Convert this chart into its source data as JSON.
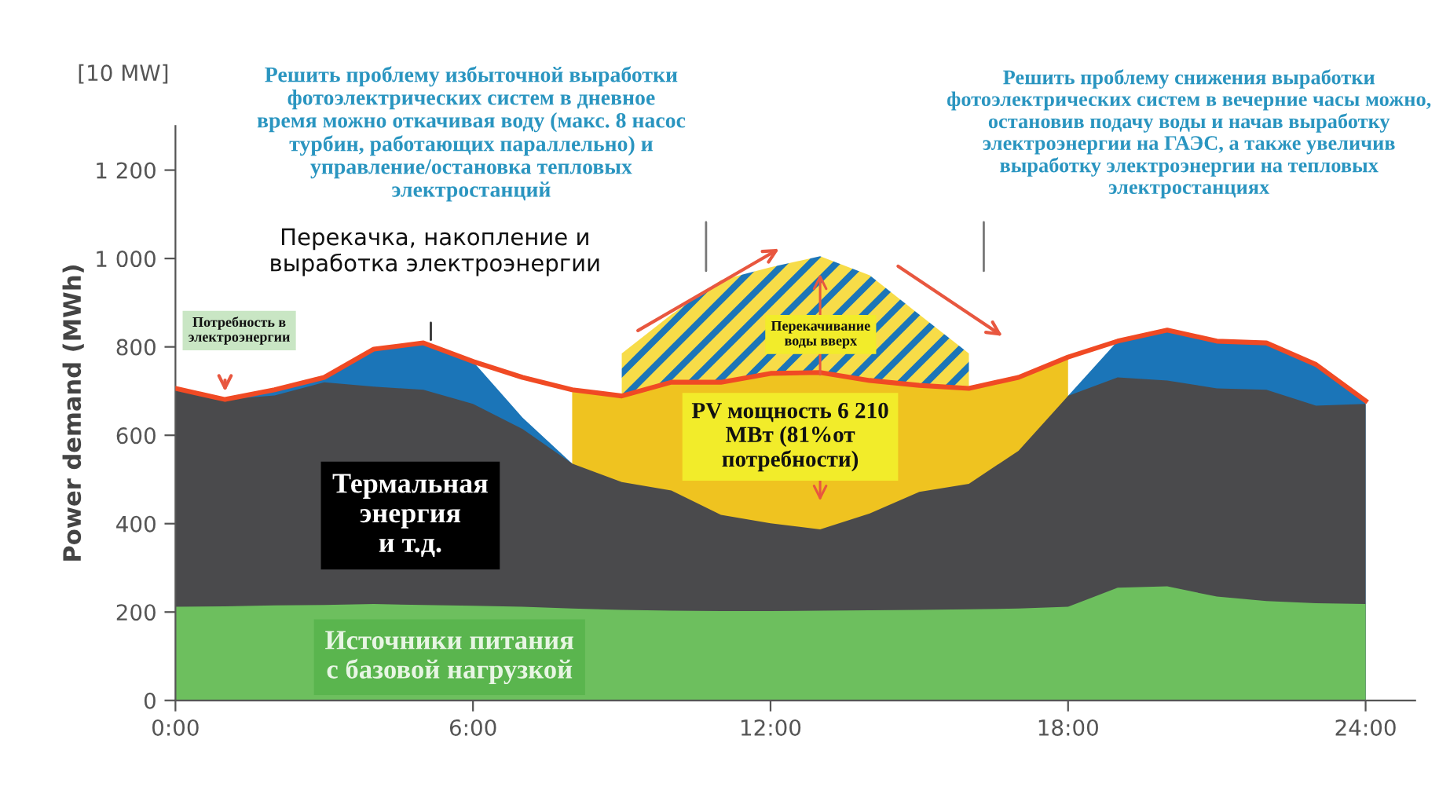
{
  "chart_data": {
    "type": "area",
    "x": [
      0,
      1,
      2,
      3,
      4,
      5,
      6,
      7,
      8,
      9,
      10,
      11,
      12,
      13,
      14,
      15,
      16,
      17,
      18,
      19,
      20,
      21,
      22,
      23,
      24
    ],
    "xlim": [
      0,
      25
    ],
    "xticks": [
      {
        "value": 0,
        "label": "0:00"
      },
      {
        "value": 6,
        "label": "6:00"
      },
      {
        "value": 12,
        "label": "12:00"
      },
      {
        "value": 18,
        "label": "18:00"
      },
      {
        "value": 24,
        "label": "24:00"
      }
    ],
    "ylim": [
      0,
      1300
    ],
    "yticks": [
      0,
      200,
      400,
      600,
      800,
      {
        "value": 1000,
        "label": "1 000"
      },
      {
        "value": 1200,
        "label": "1 200"
      }
    ],
    "ylabel": "Power demand (MWh)",
    "grid": false,
    "series": [
      {
        "color": "#f7dc48",
        "values": [
          null,
          null,
          null,
          null,
          null,
          null,
          null,
          null,
          null,
          785,
          873,
          951,
          980,
          1005,
          962,
          873,
          785,
          null,
          null,
          null,
          null,
          null,
          null,
          null,
          null
        ]
      },
      {
        "color": "#efc320",
        "values": [
          null,
          null,
          null,
          null,
          null,
          null,
          null,
          null,
          703,
          689,
          720,
          720,
          740,
          742,
          724,
          713,
          706,
          731,
          777,
          null,
          null,
          null,
          null,
          null,
          null
        ]
      },
      {
        "color": "#1b75b8",
        "values": [
          null,
          681,
          703,
          731,
          795,
          809,
          767,
          640,
          536,
          null,
          null,
          null,
          null,
          null,
          null,
          null,
          null,
          null,
          689,
          813,
          838,
          813,
          809,
          760,
          678
        ]
      },
      {
        "color": "#4a4a4c",
        "values": [
          703,
          681,
          690,
          720,
          710,
          703,
          671,
          614,
          536,
          494,
          475,
          420,
          401,
          387,
          423,
          472,
          490,
          565,
          689,
          731,
          724,
          706,
          703,
          667,
          671
        ]
      },
      {
        "color": "#6dbf5e",
        "values": [
          212,
          213,
          215,
          216,
          218,
          216,
          214,
          212,
          208,
          205,
          203,
          202,
          202,
          203,
          204,
          205,
          206,
          208,
          212,
          255,
          258,
          235,
          225,
          220,
          218
        ]
      },
      {
        "type": "line",
        "color": "#f04a24",
        "values": [
          706,
          681,
          703,
          731,
          795,
          809,
          767,
          731,
          703,
          689,
          720,
          720,
          740,
          742,
          724,
          713,
          706,
          731,
          777,
          813,
          838,
          813,
          809,
          760,
          678
        ]
      }
    ],
    "annotations": [
      "Решить проблему избыточной выработки\nфотоэлектрических систем в дневное\nвремя можно откачивая воду (макс. 8 насос\nтурбин, работающих параллельно) и\nуправление/остановка тепловых\nэлектростанций",
      "Решить проблему снижения выработки\nфотоэлектрических систем в вечерние часы можно,\nостановив подачу воды и начав выработку\nэлектроэнергии на ГАЭС, а также увеличив\nвыработку электроэнергии на тепловых\nэлектростанциях",
      "Перекачка, накопление и\nвыработка электроэнергии",
      "Потребность в\nэлектроэнергии",
      "Перекачивание\nводы вверх",
      "PV мощность 6 210\nМВт (81%от\nпотребности)",
      "Термальная\nэнергия\nи т.д.",
      "Источники питания\nс базовой нагрузкой",
      "[10 MW]"
    ]
  }
}
